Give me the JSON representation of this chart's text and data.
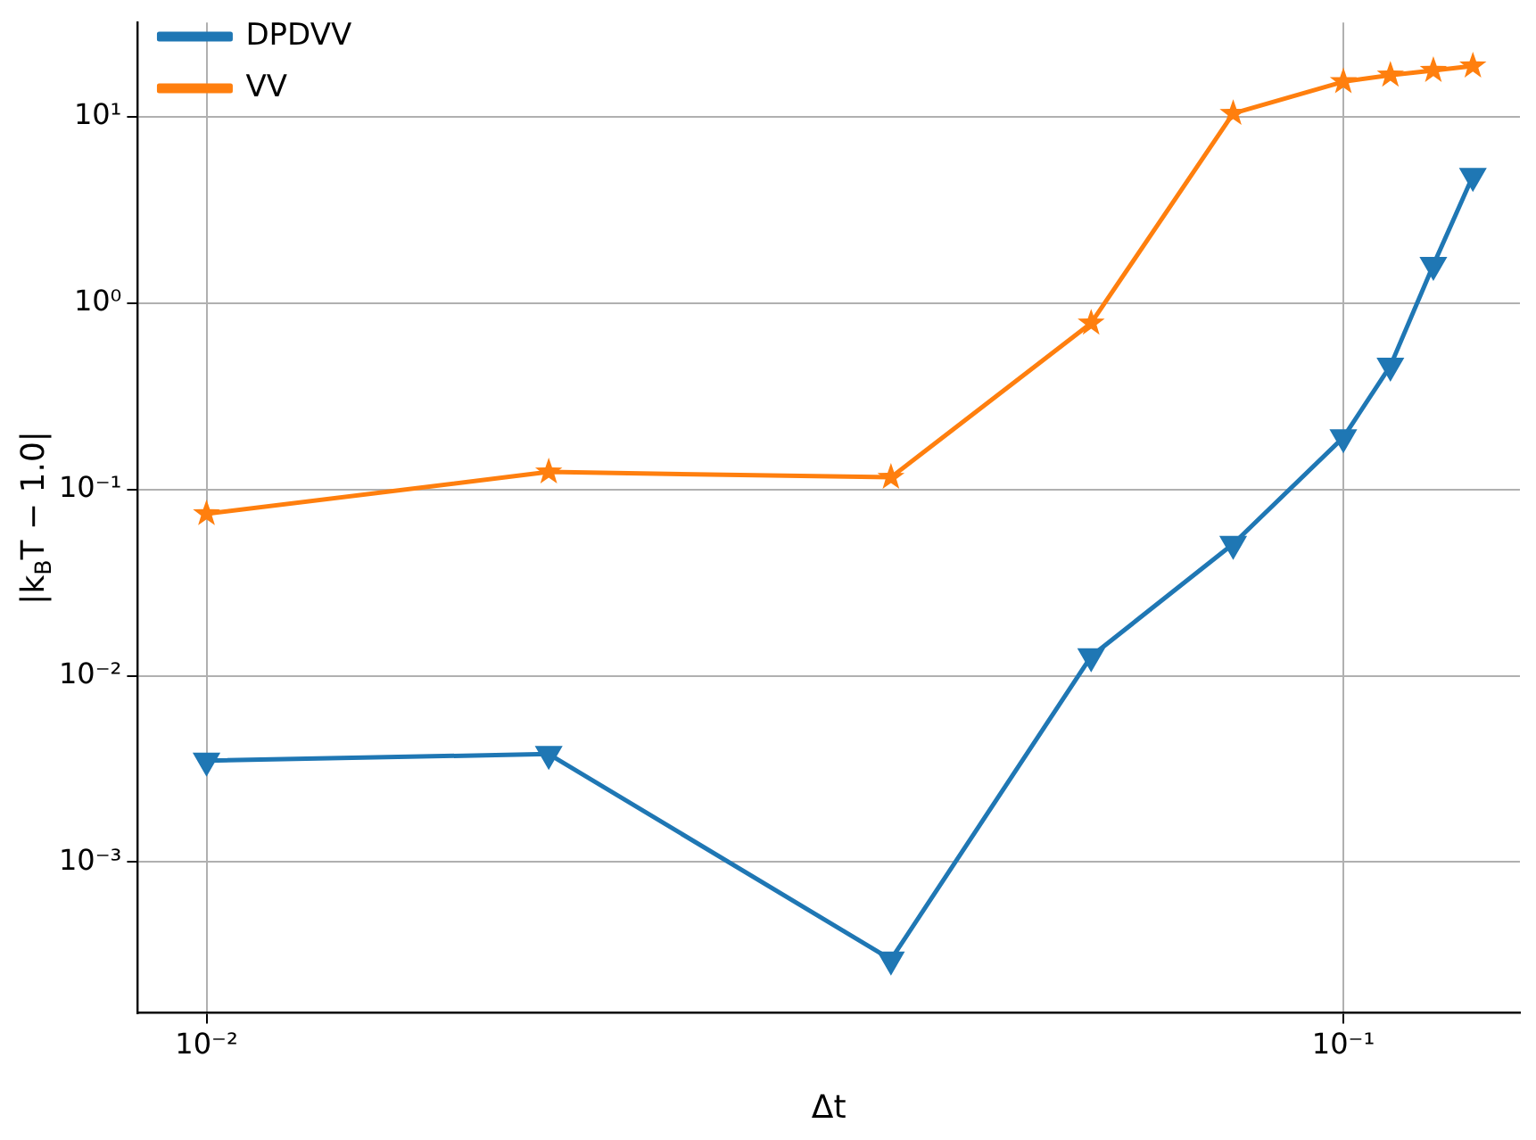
{
  "chart_data": {
    "type": "line",
    "xlabel": "Δt",
    "ylabel": "|k$_{B}$T − 1.0|",
    "x": [
      0.01,
      0.02,
      0.04,
      0.06,
      0.08,
      0.1,
      0.11,
      0.12,
      0.13
    ],
    "series": [
      {
        "name": "DPDVV",
        "color": "#1f77b4",
        "marker": "triangle-down",
        "values": [
          0.0035,
          0.0038,
          0.0003,
          0.0127,
          0.051,
          0.19,
          0.46,
          1.6,
          4.8
        ]
      },
      {
        "name": "VV",
        "color": "#ff7f0e",
        "marker": "star",
        "values": [
          0.074,
          0.124,
          0.116,
          0.78,
          10.4,
          15.4,
          16.7,
          17.7,
          18.7
        ]
      }
    ],
    "log": "xy",
    "xlim": [
      0.0087,
      0.143
    ],
    "ylim": [
      0.000155,
      32
    ],
    "xticks": [
      {
        "value": 0.01,
        "label": "10⁻²"
      },
      {
        "value": 0.1,
        "label": "10⁻¹"
      }
    ],
    "yticks": [
      {
        "value": 0.001,
        "label": "10⁻³"
      },
      {
        "value": 0.01,
        "label": "10⁻²"
      },
      {
        "value": 0.1,
        "label": "10⁻¹"
      },
      {
        "value": 1,
        "label": "10⁰"
      },
      {
        "value": 10,
        "label": "10¹"
      }
    ],
    "grid": true,
    "legend": "top left",
    "line_style": "solid"
  }
}
